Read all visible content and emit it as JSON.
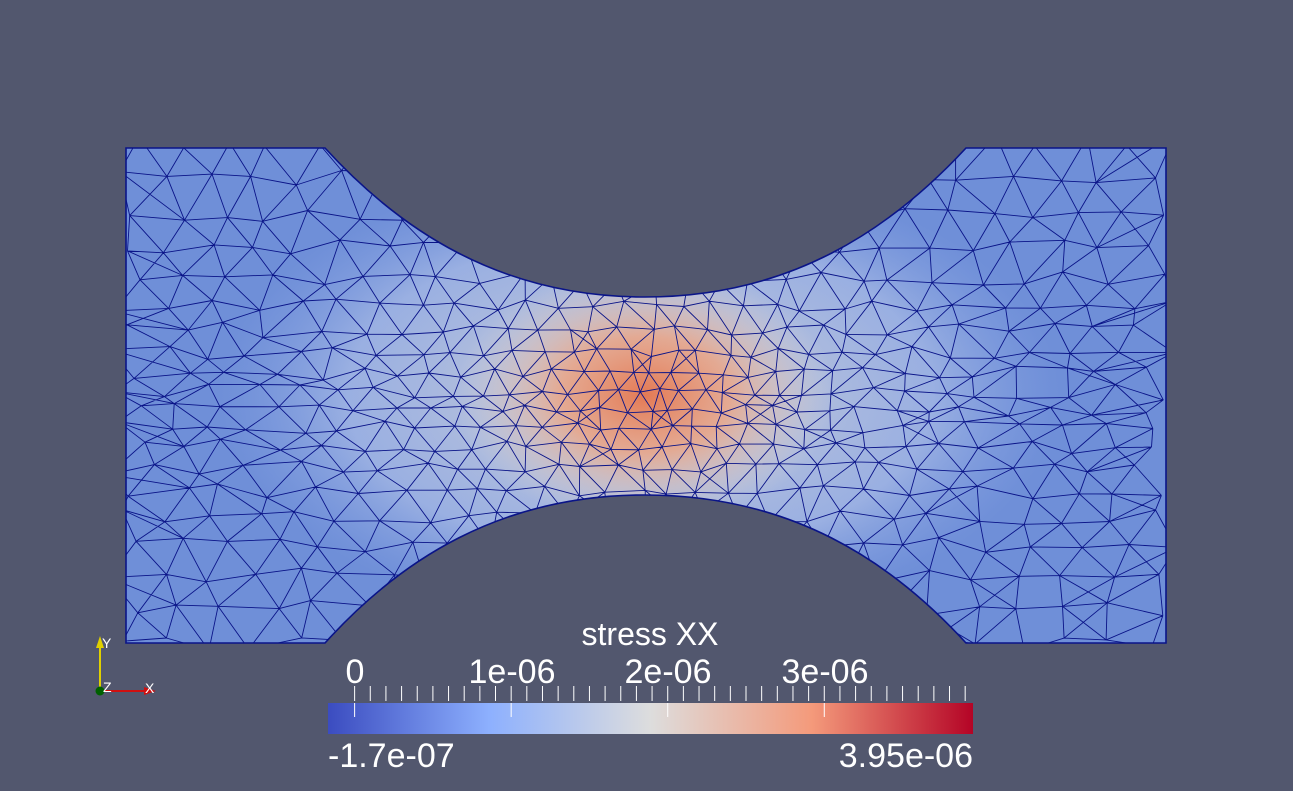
{
  "view": {
    "background": "#52576e",
    "mesh_edge_color": "#0a1488",
    "field": "stress XX"
  },
  "color_legend": {
    "title": "stress XX",
    "range_min_label": "-1.7e-07",
    "range_max_label": "3.95e-06",
    "range": [
      -1.7e-07,
      3.95e-06
    ],
    "tick_labels": [
      "0",
      "1e-06",
      "2e-06",
      "3e-06"
    ],
    "tick_values": [
      0,
      1e-06,
      2e-06,
      3e-06
    ],
    "minor_tick_step": 1e-07,
    "colormap": "Cool to Warm",
    "colormap_stops": [
      "#3b4cc0",
      "#8db0fe",
      "#dddddd",
      "#f49a7b",
      "#b40426"
    ]
  },
  "orientation_axes": {
    "x_label": "X",
    "y_label": "Y",
    "z_label": "Z",
    "x_color": "#d01010",
    "y_color": "#e0d000",
    "z_color": "#006000"
  }
}
